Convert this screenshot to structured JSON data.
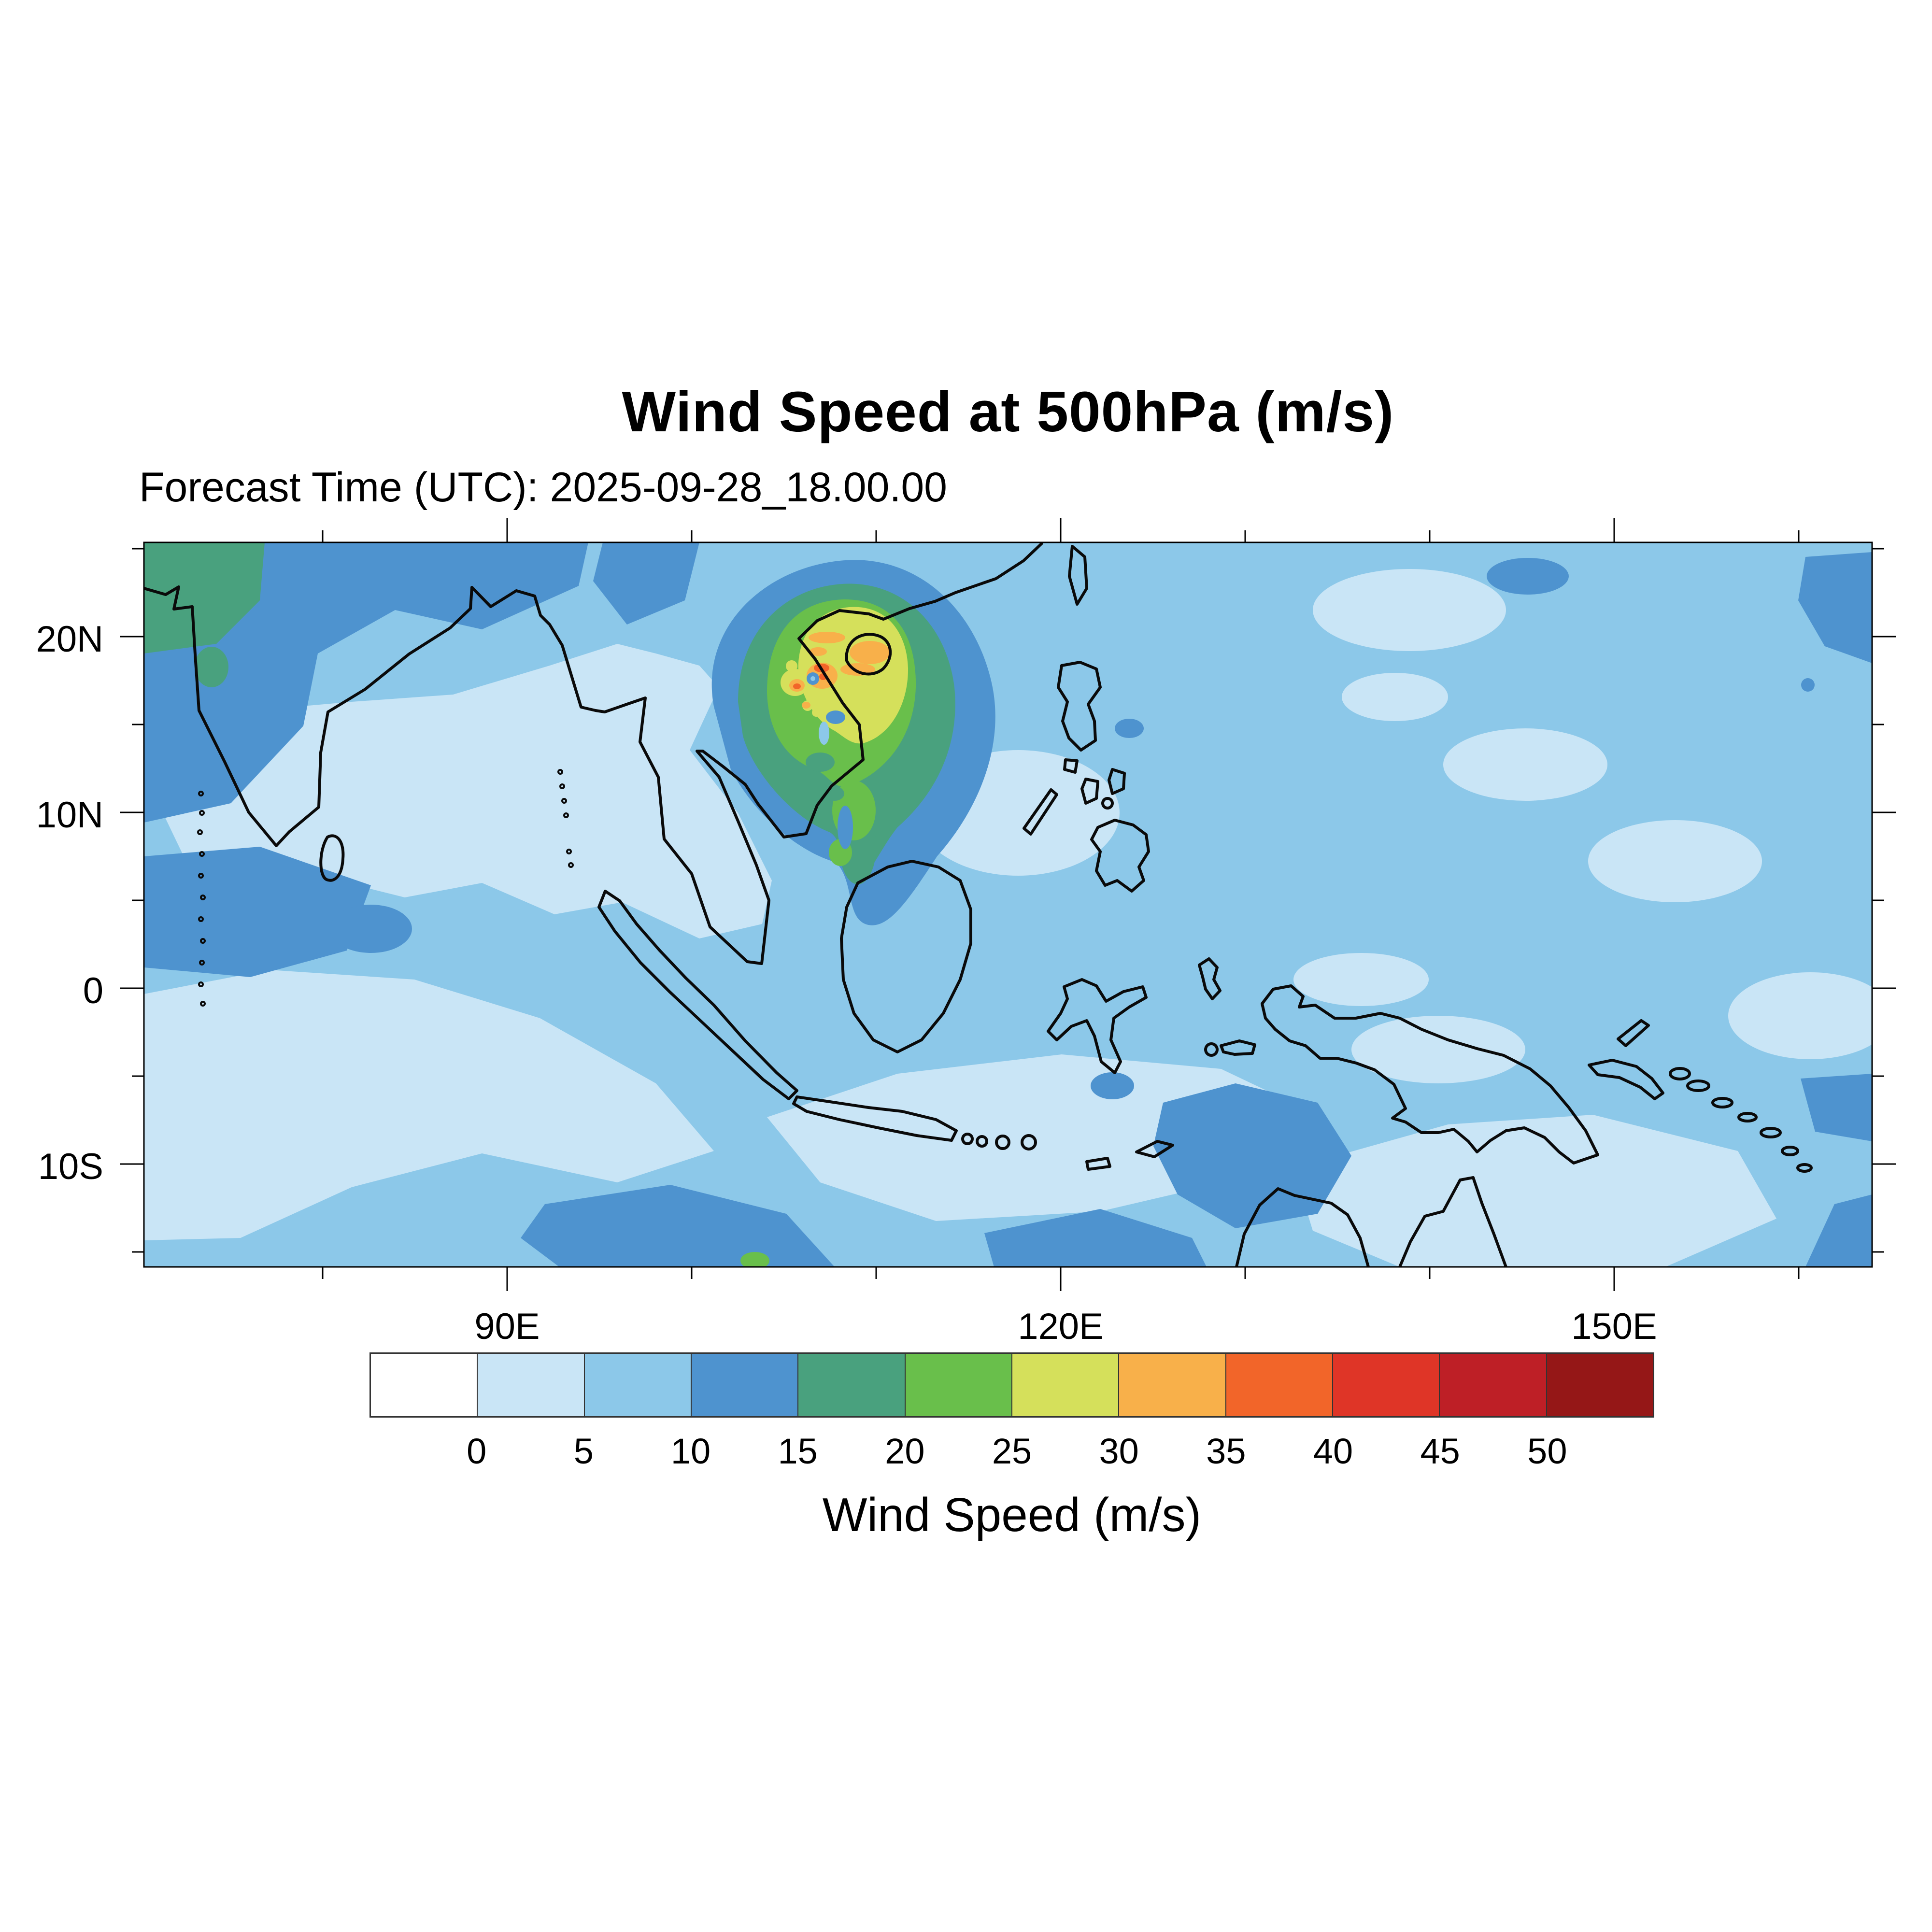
{
  "header": {
    "title": "Wind Speed at 500hPa (m/s)",
    "subtitle": "Forecast Time (UTC): 2025-09-28_18.00.00"
  },
  "axes": {
    "y_tick_labels": [
      "20N",
      "10N",
      "0",
      "10S"
    ],
    "y_tick_values_deg": [
      20,
      10,
      0,
      -10
    ],
    "y_minor_values_deg": [
      25,
      15,
      5,
      -5,
      -15
    ],
    "x_tick_labels": [
      "90E",
      "120E",
      "150E"
    ],
    "x_tick_values_deg": [
      90,
      120,
      150
    ],
    "x_minor_values_deg": [
      80,
      100,
      110,
      130,
      140,
      160
    ]
  },
  "colorbar": {
    "title": "Wind Speed (m/s)",
    "tick_labels": [
      "0",
      "5",
      "10",
      "15",
      "20",
      "25",
      "30",
      "35",
      "40",
      "45",
      "50"
    ],
    "colors": [
      "#ffffff",
      "#c9e5f6",
      "#8cc8e9",
      "#4e93cf",
      "#49a17e",
      "#69bf4b",
      "#d5e05b",
      "#f8b04a",
      "#f26529",
      "#df3527",
      "#be1f26",
      "#951717"
    ]
  },
  "chart_data": {
    "type": "heatmap",
    "subtype": "filled-contour-geographic-map",
    "title": "Wind Speed at 500hPa (m/s)",
    "forecast_time_utc": "2025-09-28_18.00.00",
    "variable": "wind speed",
    "pressure_level": "500hPa",
    "units": "m/s",
    "contour_levels": [
      0,
      5,
      10,
      15,
      20,
      25,
      30,
      35,
      40,
      45,
      50
    ],
    "palette": [
      "#ffffff",
      "#c9e5f6",
      "#8cc8e9",
      "#4e93cf",
      "#49a17e",
      "#69bf4b",
      "#d5e05b",
      "#f8b04a",
      "#f26529",
      "#df3527",
      "#be1f26",
      "#951717"
    ],
    "lon_range_deg_east": [
      70.3,
      164.0
    ],
    "lat_range_deg_north": [
      -15.9,
      25.4
    ],
    "x_tick_labels": [
      "90E",
      "120E",
      "150E"
    ],
    "y_tick_labels": [
      "20N",
      "10N",
      "0",
      "10S"
    ],
    "region": "India, Southeast Asia, Indonesia, Western Pacific",
    "legend_title": "Wind Speed (m/s)",
    "grid": false,
    "features": [
      {
        "name": "tropical-cyclone",
        "lon_e": 106.8,
        "lat_n": 17.2,
        "peak_band_ms": "35-40",
        "description": "Intense circular vortex over northern Vietnam / Gulf of Tonkin / Hainan: concentric rings 10-15, 15-20, 20-25, 25-30 m/s with embedded 30-40 m/s patches and a calm eye"
      },
      {
        "name": "northwest-jet-patch",
        "lon_e": 71.0,
        "lat_n": 24.5,
        "peak_band_ms": "15-20",
        "description": "Teal-green 15-20 m/s area in the NW corner over Pakistan / NW India ringed by 10-15 m/s"
      },
      {
        "name": "southern-ocean-band",
        "lon_e": 100.0,
        "lat_n": -14.0,
        "peak_band_ms": "15-20",
        "description": "10-15 m/s band with small 15-20 m/s spot at the southern map edge south of Indonesia"
      },
      {
        "name": "halmahera-maxima",
        "lon_e": 128.0,
        "lat_n": -3.5,
        "peak_band_ms": "10-15",
        "description": "10-15 m/s blob near Halmahera / West Papua"
      },
      {
        "name": "background-flow",
        "peak_band_ms": "0-10",
        "description": "Broad 0-5 and 5-10 m/s field over most of the Indian Ocean and Pacific"
      }
    ]
  }
}
